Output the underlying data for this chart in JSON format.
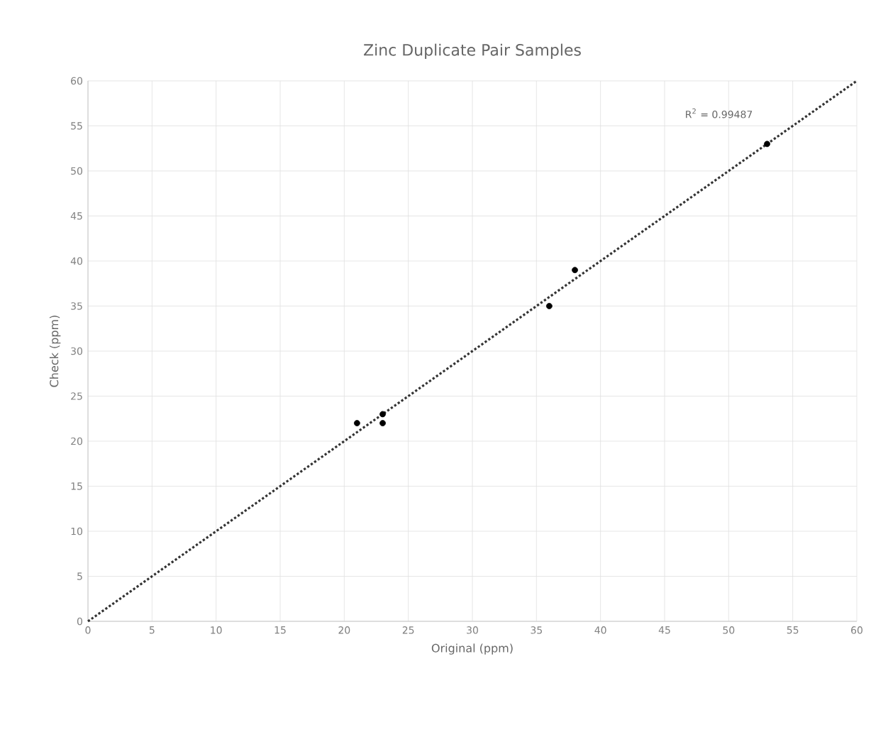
{
  "chart_data": {
    "type": "scatter",
    "title": "Zinc Duplicate Pair Samples",
    "xlabel": "Original (ppm)",
    "ylabel": "Check (ppm)",
    "series": [
      {
        "color": "#000000",
        "marker": "circle",
        "x": [
          21,
          23,
          23,
          36,
          38,
          53
        ],
        "values": [
          22,
          23,
          22,
          35,
          39,
          53
        ]
      },
      {
        "type": "line",
        "color": "#333333",
        "line_style": "dotted",
        "marker": "none",
        "x": [
          0,
          60
        ],
        "values": [
          0,
          60
        ]
      }
    ],
    "annotations": [
      "R$^{2}$ = 0.99487"
    ],
    "xlim": [
      0,
      60
    ],
    "ylim": [
      0,
      60
    ],
    "xticks": [
      0,
      5,
      10,
      15,
      20,
      25,
      30,
      35,
      40,
      45,
      50,
      55,
      60
    ],
    "yticks": [
      0,
      5,
      10,
      15,
      20,
      25,
      30,
      35,
      40,
      45,
      50,
      55,
      60
    ],
    "grid": true
  }
}
